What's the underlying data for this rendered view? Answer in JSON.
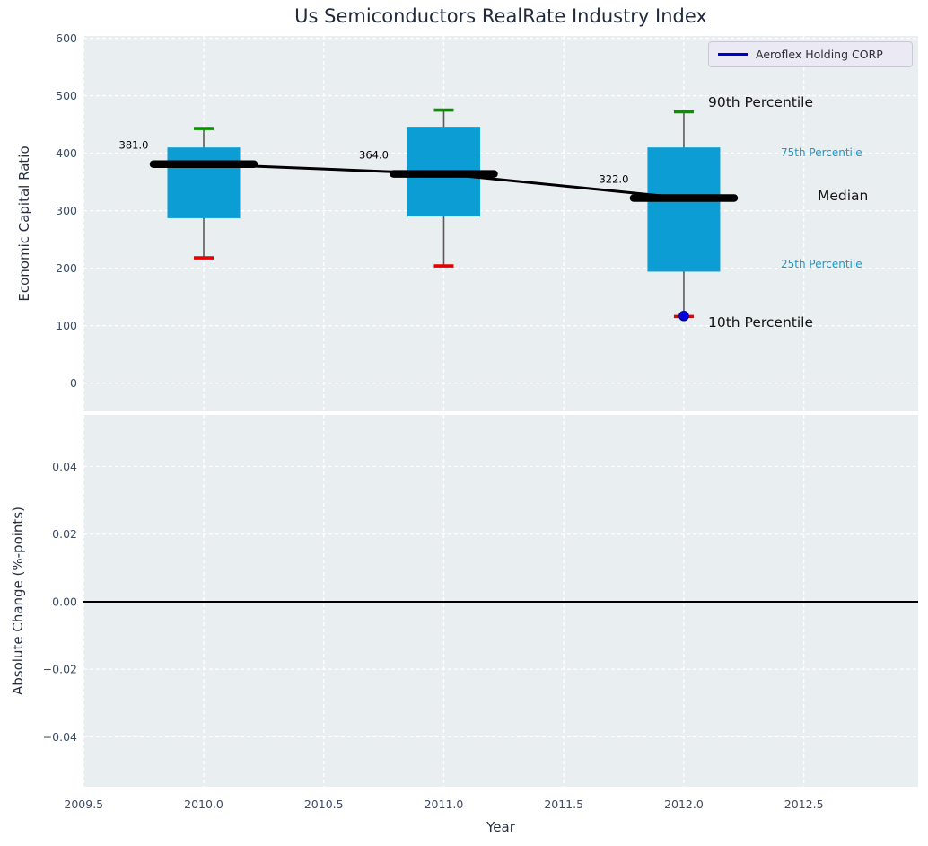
{
  "chart_data": {
    "type": "box",
    "title": "Us Semiconductors RealRate Industry Index",
    "xlabel": "Year",
    "ylabel_top": "Economic Capital Ratio",
    "ylabel_bottom": "Absolute Change (%-points)",
    "x_ticks": [
      2009.5,
      2010.0,
      2010.5,
      2011.0,
      2011.5,
      2012.0,
      2012.5
    ],
    "y_ticks_top": [
      0,
      100,
      200,
      300,
      400,
      500,
      600
    ],
    "y_ticks_bottom": [
      -0.04,
      -0.02,
      0.0,
      0.02,
      0.04
    ],
    "xlim": [
      2009.499,
      2012.976
    ],
    "ylim_top": [
      -49,
      604
    ],
    "ylim_bottom": [
      -0.0548,
      0.0553
    ],
    "grid": true,
    "legend_position": "upper right",
    "categories": [
      2010,
      2011,
      2012
    ],
    "boxes": [
      {
        "year": 2010,
        "p10": 218,
        "p25": 287,
        "median": 381.0,
        "p75": 410,
        "p90": 443,
        "label": "381.0"
      },
      {
        "year": 2011,
        "p10": 204,
        "p25": 290,
        "median": 364.0,
        "p75": 446,
        "p90": 475,
        "label": "364.0"
      },
      {
        "year": 2012,
        "p10": 116,
        "p25": 194,
        "median": 322.0,
        "p75": 410,
        "p90": 472,
        "label": "322.0"
      }
    ],
    "series": [
      {
        "name": "Aeroflex Holding CORP",
        "points": [
          {
            "x": 2012,
            "y": 117
          }
        ],
        "color": "#0000dd"
      }
    ],
    "annotations": {
      "p90": "90th Percentile",
      "p75": "75th Percentile",
      "median": "Median",
      "p25": "25th Percentile",
      "p10": "10th Percentile"
    },
    "bottom_panel": {
      "zero_line": 0.0
    }
  },
  "colors": {
    "panel_bg": "#e9eef0",
    "grid": "#ffffff",
    "box_fill": "#0c9dd4",
    "cap_top": "#0a9000",
    "cap_bottom": "#e60000",
    "whisker": "#5a5a5a",
    "median": "#000000",
    "connector": "#000000",
    "dot_fill": "#0000dd",
    "dot_edge": "#000080",
    "tick_text": "#3d4c63",
    "label_text": "#262f40",
    "cyan_text": "#149ccd",
    "black_text": "#141414",
    "title_text": "#212b3c",
    "zero_line": "#000000",
    "legend_line": "#0000cc",
    "legend_bg": "#eae9f4",
    "legend_border": "#c9c8d4"
  }
}
